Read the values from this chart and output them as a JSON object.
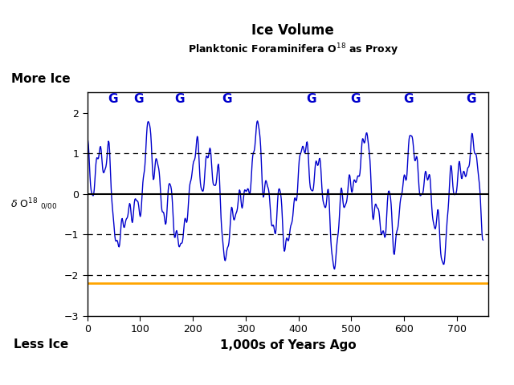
{
  "title": "Ice Volume",
  "subtitle": "Planktonic Foraminifera O$^{18}$ as Proxy",
  "xlabel": "1,000s of Years Ago",
  "xlim": [
    0,
    760
  ],
  "ylim": [
    -3,
    2.5
  ],
  "yticks": [
    -3,
    -2,
    -1,
    0,
    1,
    2
  ],
  "xticks": [
    0,
    100,
    200,
    300,
    400,
    500,
    600,
    700
  ],
  "dashed_lines": [
    1,
    -1,
    -2
  ],
  "solid_line": 0,
  "line_color": "#0000CC",
  "glacial_label": "G",
  "glacial_color": "#0000CC",
  "glacial_x": [
    48,
    97,
    175,
    265,
    425,
    508,
    608,
    728
  ],
  "glacial_y": 2.18,
  "more_ice_label": "More Ice",
  "less_ice_label": "Less Ice",
  "more_ice_bg": "#00FFFF",
  "less_ice_bg": "#FFA500",
  "background_color": "#FFFFFF",
  "orange_line_y": -2.2,
  "orange_line_color": "#FFA500"
}
